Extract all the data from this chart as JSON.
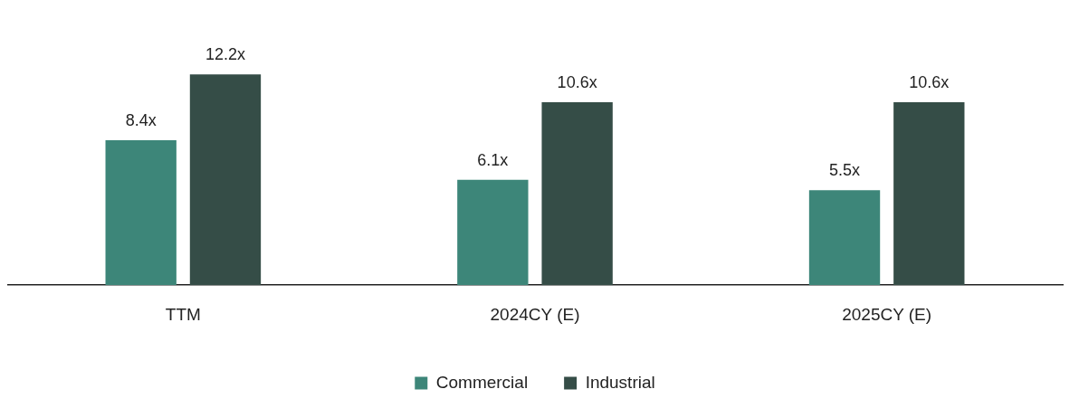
{
  "chart_data": {
    "type": "bar",
    "categories": [
      "TTM",
      "2024CY (E)",
      "2025CY (E)"
    ],
    "series": [
      {
        "name": "Commercial",
        "color": "#3d8679",
        "values": [
          8.4,
          6.1,
          5.5
        ],
        "value_labels": [
          "8.4x",
          "6.1x",
          "5.5x"
        ]
      },
      {
        "name": "Industrial",
        "color": "#354d47",
        "values": [
          12.2,
          10.6,
          10.6
        ],
        "value_labels": [
          "12.2x",
          "10.6x",
          "10.6x"
        ]
      }
    ],
    "legend": "bottom"
  }
}
